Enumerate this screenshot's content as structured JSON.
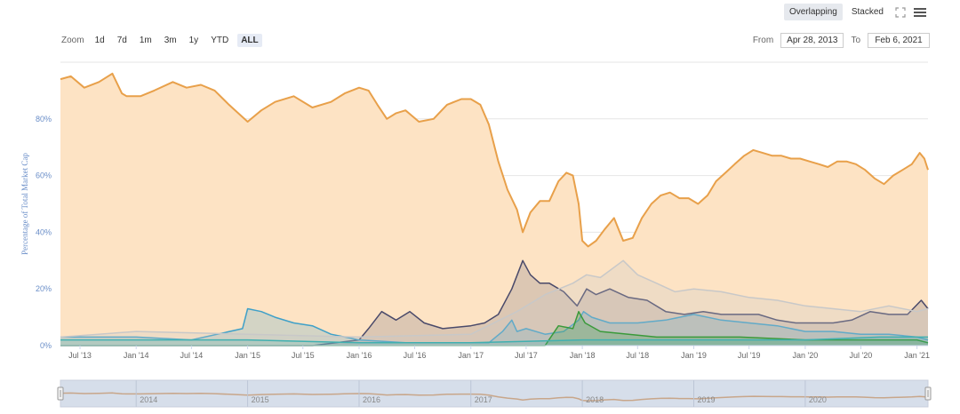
{
  "toolbar": {
    "overlapping_label": "Overlapping",
    "stacked_label": "Stacked",
    "expand_icon": "expand-icon",
    "menu_icon": "hamburger-menu-icon"
  },
  "zoom": {
    "label": "Zoom",
    "buttons": [
      "1d",
      "7d",
      "1m",
      "3m",
      "1y",
      "YTD",
      "ALL"
    ],
    "active": "ALL"
  },
  "range": {
    "from_label": "From",
    "from_value": "Apr 28, 2013",
    "to_label": "To",
    "to_value": "Feb 6, 2021"
  },
  "chart_data": {
    "type": "area",
    "title": "",
    "ylabel": "Percentage of Total Market Cap",
    "ylim": [
      0,
      100
    ],
    "y_ticks": [
      "0%",
      "20%",
      "40%",
      "60%",
      "80%"
    ],
    "x_tick_labels": [
      "Jul '13",
      "Jan '14",
      "Jul '14",
      "Jan '15",
      "Jul '15",
      "Jan '16",
      "Jul '16",
      "Jan '17",
      "Jul '17",
      "Jan '18",
      "Jul '18",
      "Jan '19",
      "Jul '19",
      "Jan '20",
      "Jul '20",
      "Jan '21"
    ],
    "x_tick_dates": [
      "2013-07-01",
      "2014-01-01",
      "2014-07-01",
      "2015-01-01",
      "2015-07-01",
      "2016-01-01",
      "2016-07-01",
      "2017-01-01",
      "2017-07-01",
      "2018-01-01",
      "2018-07-01",
      "2019-01-01",
      "2019-07-01",
      "2020-01-01",
      "2020-07-01",
      "2021-01-01"
    ],
    "x_range": [
      "2013-04-28",
      "2021-02-06"
    ],
    "grid": true,
    "colors": {
      "btc": "#e8a04a",
      "btc_fill": "#fde3c4",
      "eth": "#4a4a6a",
      "xrp": "#3fa0c8",
      "light": "#c8c8c8",
      "green": "#3a9a3a",
      "cyan": "#40b0b0",
      "navigator": "#c8a68a",
      "navigator_bg": "#d6deea"
    },
    "series": [
      {
        "color": "#e8a04a",
        "x": [
          "2013-04-28",
          "2013-06-01",
          "2013-07-15",
          "2013-09-01",
          "2013-10-15",
          "2013-11-15",
          "2013-12-01",
          "2014-01-15",
          "2014-03-01",
          "2014-05-01",
          "2014-06-15",
          "2014-08-01",
          "2014-09-15",
          "2014-11-01",
          "2015-01-01",
          "2015-02-15",
          "2015-04-01",
          "2015-06-01",
          "2015-08-01",
          "2015-10-01",
          "2015-11-15",
          "2016-01-01",
          "2016-02-01",
          "2016-03-01",
          "2016-04-01",
          "2016-05-01",
          "2016-06-01",
          "2016-07-15",
          "2016-09-01",
          "2016-10-15",
          "2016-12-01",
          "2017-01-01",
          "2017-02-01",
          "2017-03-01",
          "2017-04-01",
          "2017-05-01",
          "2017-06-01",
          "2017-06-20",
          "2017-07-15",
          "2017-08-15",
          "2017-09-15",
          "2017-10-15",
          "2017-11-10",
          "2017-12-01",
          "2017-12-20",
          "2018-01-01",
          "2018-01-20",
          "2018-02-15",
          "2018-03-15",
          "2018-04-15",
          "2018-05-15",
          "2018-06-15",
          "2018-07-15",
          "2018-08-15",
          "2018-09-15",
          "2018-10-15",
          "2018-11-15",
          "2018-12-15",
          "2019-01-15",
          "2019-02-15",
          "2019-03-15",
          "2019-04-15",
          "2019-05-15",
          "2019-06-15",
          "2019-07-15",
          "2019-08-15",
          "2019-09-15",
          "2019-10-15",
          "2019-11-15",
          "2019-12-15",
          "2020-01-15",
          "2020-02-15",
          "2020-03-15",
          "2020-04-15",
          "2020-05-15",
          "2020-06-15",
          "2020-07-15",
          "2020-08-15",
          "2020-09-15",
          "2020-10-15",
          "2020-11-15",
          "2020-12-15",
          "2021-01-10",
          "2021-01-25",
          "2021-02-06"
        ],
        "values": [
          94,
          95,
          91,
          93,
          96,
          89,
          88,
          88,
          90,
          93,
          91,
          92,
          90,
          85,
          79,
          83,
          86,
          88,
          84,
          86,
          89,
          91,
          90,
          85,
          80,
          82,
          83,
          79,
          80,
          85,
          87,
          87,
          85,
          78,
          65,
          55,
          48,
          40,
          47,
          51,
          51,
          58,
          61,
          60,
          50,
          37,
          35,
          37,
          41,
          45,
          37,
          38,
          45,
          50,
          53,
          54,
          52,
          52,
          50,
          53,
          58,
          61,
          64,
          67,
          69,
          68,
          67,
          67,
          66,
          66,
          65,
          64,
          63,
          65,
          65,
          64,
          62,
          59,
          57,
          60,
          62,
          64,
          68,
          66,
          62
        ]
      },
      {
        "color": "#4a4a6a",
        "x": [
          "2013-04-28",
          "2015-08-01",
          "2016-01-01",
          "2016-02-01",
          "2016-03-15",
          "2016-05-01",
          "2016-06-15",
          "2016-08-01",
          "2016-10-01",
          "2017-01-01",
          "2017-02-15",
          "2017-04-01",
          "2017-05-15",
          "2017-06-20",
          "2017-07-15",
          "2017-08-15",
          "2017-09-15",
          "2017-11-01",
          "2017-12-15",
          "2018-01-15",
          "2018-02-15",
          "2018-04-01",
          "2018-06-01",
          "2018-08-01",
          "2018-10-01",
          "2018-12-01",
          "2019-02-01",
          "2019-04-01",
          "2019-06-01",
          "2019-08-01",
          "2019-10-01",
          "2019-12-01",
          "2020-02-01",
          "2020-04-01",
          "2020-06-01",
          "2020-08-01",
          "2020-10-01",
          "2020-12-01",
          "2021-01-15",
          "2021-02-06"
        ],
        "values": [
          0,
          0,
          2,
          6,
          12,
          9,
          12,
          8,
          6,
          7,
          8,
          11,
          20,
          30,
          25,
          22,
          22,
          19,
          14,
          20,
          18,
          20,
          17,
          16,
          12,
          11,
          12,
          11,
          11,
          11,
          9,
          8,
          8,
          8,
          9,
          12,
          11,
          11,
          16,
          13
        ]
      },
      {
        "color": "#3fa0c8",
        "x": [
          "2013-04-28",
          "2013-07-01",
          "2014-01-01",
          "2014-07-01",
          "2014-12-15",
          "2015-01-01",
          "2015-02-15",
          "2015-04-01",
          "2015-06-01",
          "2015-08-01",
          "2015-10-01",
          "2016-01-01",
          "2016-06-01",
          "2017-01-01",
          "2017-03-01",
          "2017-04-15",
          "2017-05-15",
          "2017-06-01",
          "2017-07-01",
          "2017-09-01",
          "2017-11-01",
          "2017-12-20",
          "2018-01-05",
          "2018-02-01",
          "2018-04-01",
          "2018-07-01",
          "2018-10-01",
          "2019-01-01",
          "2019-04-01",
          "2019-07-01",
          "2019-10-01",
          "2020-01-01",
          "2020-04-01",
          "2020-07-01",
          "2020-10-01",
          "2021-01-01",
          "2021-02-06"
        ],
        "values": [
          3,
          3,
          3,
          2,
          6,
          13,
          12,
          10,
          8,
          7,
          4,
          2,
          1,
          1,
          1,
          5,
          9,
          5,
          6,
          4,
          5,
          9,
          12,
          10,
          8,
          8,
          9,
          11,
          9,
          8,
          7,
          5,
          5,
          4,
          4,
          3,
          2
        ]
      },
      {
        "color": "#c8c8c8",
        "x": [
          "2013-04-28",
          "2014-01-01",
          "2015-01-01",
          "2016-01-01",
          "2017-01-01",
          "2017-06-01",
          "2017-09-01",
          "2017-12-01",
          "2018-01-15",
          "2018-03-01",
          "2018-05-15",
          "2018-07-01",
          "2018-09-01",
          "2018-11-01",
          "2019-01-01",
          "2019-04-01",
          "2019-07-01",
          "2019-10-01",
          "2020-01-01",
          "2020-04-01",
          "2020-07-01",
          "2020-10-01",
          "2021-01-01",
          "2021-02-06"
        ],
        "values": [
          3,
          5,
          4,
          3,
          4,
          12,
          18,
          22,
          25,
          24,
          30,
          25,
          22,
          19,
          20,
          19,
          17,
          16,
          14,
          13,
          12,
          14,
          12,
          13
        ]
      },
      {
        "color": "#3a9a3a",
        "x": [
          "2013-04-28",
          "2017-09-01",
          "2017-10-15",
          "2017-12-01",
          "2017-12-20",
          "2018-01-10",
          "2018-03-01",
          "2018-06-01",
          "2018-09-01",
          "2019-01-01",
          "2019-06-01",
          "2020-01-01",
          "2020-07-01",
          "2021-01-01",
          "2021-02-06"
        ],
        "values": [
          0,
          0,
          7,
          6,
          12,
          8,
          5,
          4,
          3,
          3,
          3,
          2,
          2,
          2,
          1
        ]
      },
      {
        "color": "#40b0b0",
        "x": [
          "2013-04-28",
          "2014-01-01",
          "2015-01-01",
          "2016-01-01",
          "2017-01-01",
          "2018-01-01",
          "2019-01-01",
          "2020-01-01",
          "2020-09-01",
          "2021-01-01",
          "2021-02-06"
        ],
        "values": [
          2,
          2,
          2,
          1,
          1,
          2,
          2,
          2,
          3,
          3,
          3
        ]
      }
    ],
    "navigator": {
      "year_labels": [
        "2014",
        "2015",
        "2016",
        "2017",
        "2018",
        "2019",
        "2020"
      ]
    }
  }
}
